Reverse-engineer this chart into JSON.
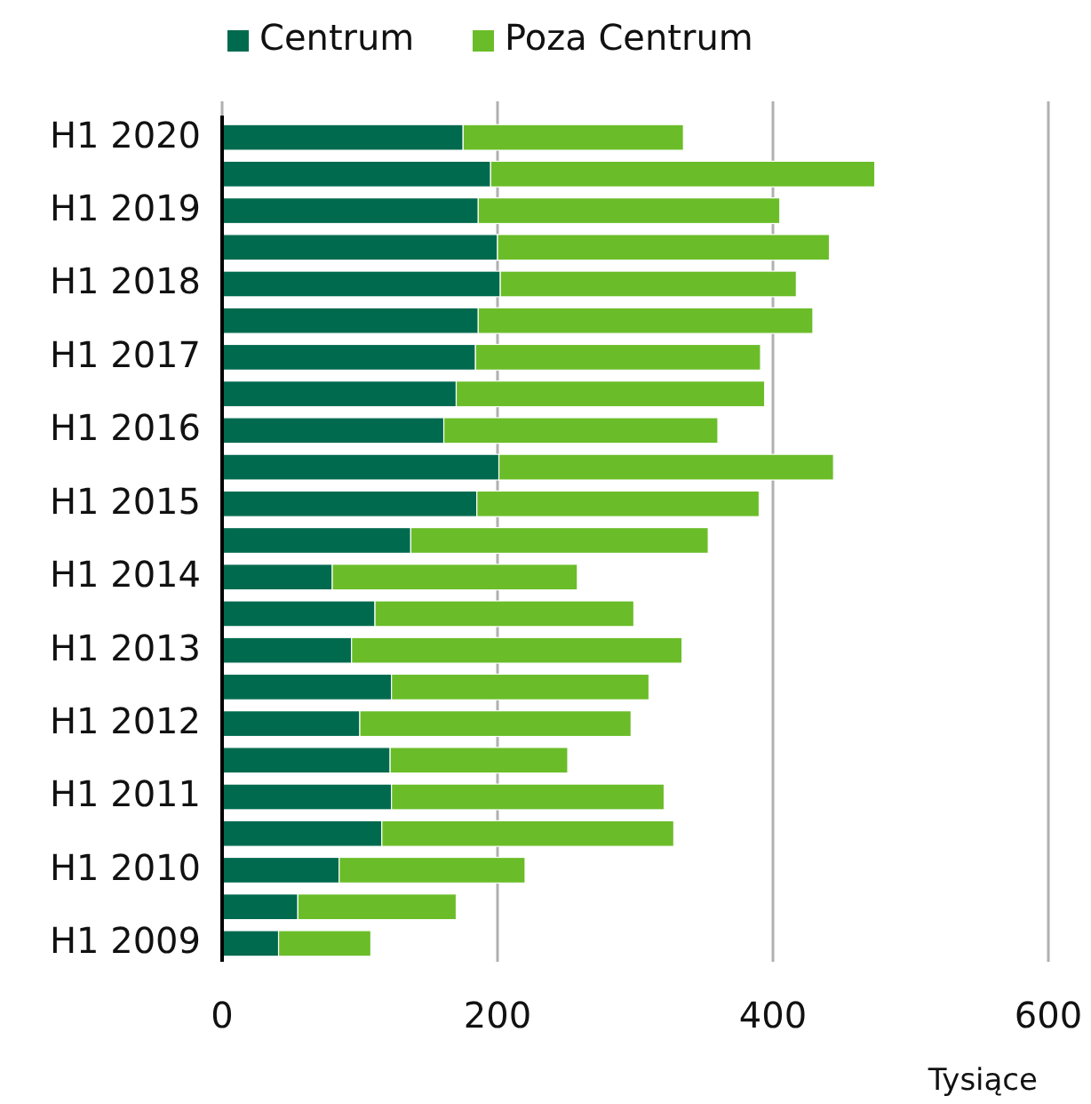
{
  "chart_data": {
    "type": "bar",
    "orientation": "horizontal",
    "stacked": true,
    "categories": [
      "H1 2020",
      null,
      "H1 2019",
      null,
      "H1 2018",
      null,
      "H1 2017",
      null,
      "H1 2016",
      null,
      "H1 2015",
      null,
      "H1 2014",
      null,
      "H1 2013",
      null,
      "H1 2012",
      null,
      "H1 2011",
      null,
      "H1 2010",
      null,
      "H1 2009"
    ],
    "series": [
      {
        "name": "Centrum",
        "color": "#006a4e",
        "values": [
          175,
          195,
          186,
          200,
          202,
          186,
          184,
          170,
          161,
          201,
          185,
          137,
          80,
          111,
          94,
          123,
          100,
          122,
          123,
          116,
          85,
          55,
          41
        ]
      },
      {
        "name": "Poza Centrum",
        "color": "#6abd28",
        "values": [
          160,
          279,
          219,
          241,
          215,
          243,
          207,
          224,
          199,
          243,
          205,
          216,
          178,
          188,
          240,
          187,
          197,
          129,
          198,
          212,
          135,
          115,
          67
        ]
      }
    ],
    "xlim": [
      0,
      600
    ],
    "xticks": [
      0,
      200,
      400,
      600
    ],
    "xlabel": "Tysiące",
    "grid": "x",
    "legend": "top"
  }
}
